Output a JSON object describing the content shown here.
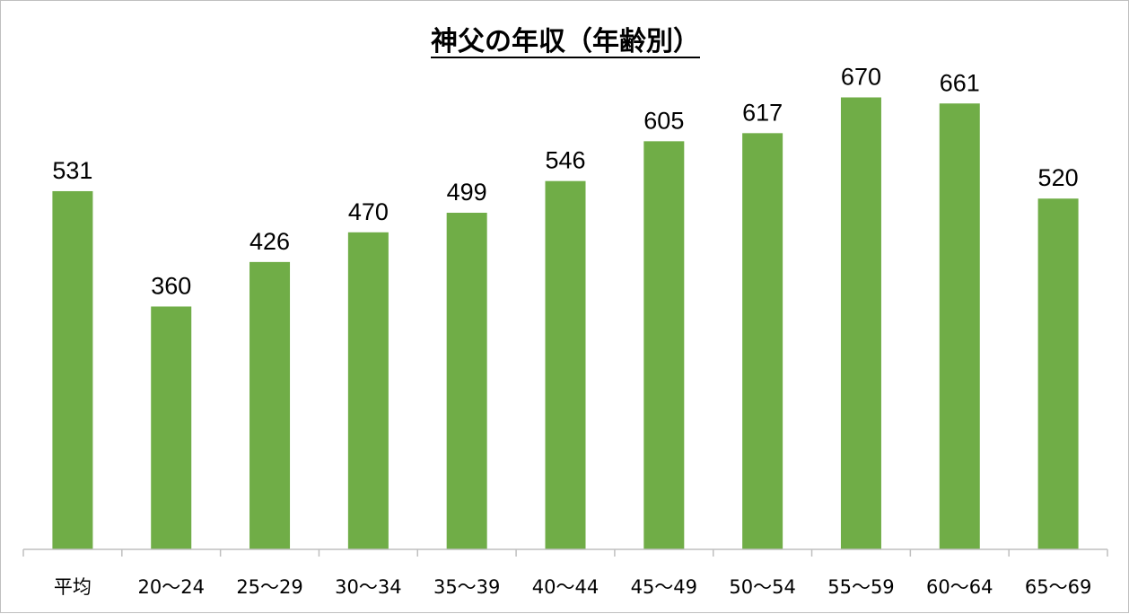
{
  "chart_data": {
    "type": "bar",
    "title": "神父の年収（年齢別）",
    "xlabel": "",
    "ylabel": "",
    "categories": [
      "平均",
      "20～24",
      "25～29",
      "30～34",
      "35～39",
      "40～44",
      "45～49",
      "50～54",
      "55～59",
      "60～64",
      "65～69"
    ],
    "values": [
      531,
      360,
      426,
      470,
      499,
      546,
      605,
      617,
      670,
      661,
      520
    ],
    "ylim": [
      0,
      800
    ],
    "grid": false,
    "legend": "none",
    "data_labels": true,
    "bar_color": "#70ad47",
    "axis_color": "#bfbfbf"
  }
}
